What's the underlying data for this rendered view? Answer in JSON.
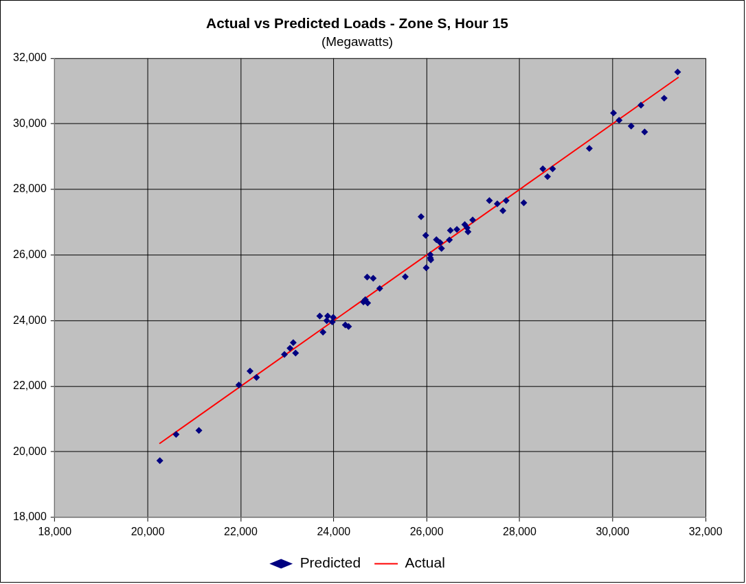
{
  "chart_data": {
    "type": "scatter",
    "title": "Actual vs Predicted Loads - Zone S, Hour 15",
    "subtitle": "(Megawatts)",
    "xlim": [
      18000,
      32000
    ],
    "xticks": [
      {
        "value": 18000,
        "label": "18,000"
      },
      {
        "value": 20000,
        "label": "20,000"
      },
      {
        "value": 22000,
        "label": "22,000"
      },
      {
        "value": 24000,
        "label": "24,000"
      },
      {
        "value": 26000,
        "label": "26,000"
      },
      {
        "value": 28000,
        "label": "28,000"
      },
      {
        "value": 30000,
        "label": "30,000"
      },
      {
        "value": 32000,
        "label": "32,000"
      }
    ],
    "ylim": [
      18000,
      32000
    ],
    "yticks": [
      {
        "value": 18000,
        "label": "18,000"
      },
      {
        "value": 20000,
        "label": "20,000"
      },
      {
        "value": 22000,
        "label": "22,000"
      },
      {
        "value": 24000,
        "label": "24,000"
      },
      {
        "value": 26000,
        "label": "26,000"
      },
      {
        "value": 28000,
        "label": "28,000"
      },
      {
        "value": 30000,
        "label": "30,000"
      },
      {
        "value": 32000,
        "label": "32,000"
      }
    ],
    "grid": true,
    "legend": "bottom",
    "series": [
      {
        "name": "Predicted",
        "marker": "diamond",
        "color": "#000080",
        "x": [
          20260,
          20610,
          21100,
          21960,
          22200,
          22340,
          22940,
          23060,
          23130,
          23180,
          23700,
          23770,
          23870,
          23850,
          23990,
          23970,
          24250,
          24320,
          24640,
          24730,
          24680,
          24990,
          24720,
          24850,
          25540,
          25880,
          25980,
          25990,
          26080,
          26090,
          26080,
          26210,
          26320,
          26290,
          26490,
          26510,
          26650,
          26820,
          26870,
          26890,
          26990,
          27350,
          27520,
          27640,
          27710,
          28090,
          28500,
          28600,
          28710,
          29500,
          30020,
          30140,
          30400,
          30690,
          30610,
          31110,
          31400
        ],
        "values": [
          19730,
          20530,
          20650,
          22040,
          22460,
          22270,
          22970,
          23160,
          23330,
          23010,
          24140,
          23650,
          24140,
          24000,
          24100,
          23960,
          23870,
          23820,
          24570,
          24540,
          24640,
          24980,
          25330,
          25290,
          25340,
          27170,
          26600,
          25610,
          26010,
          25850,
          25910,
          26470,
          26200,
          26380,
          26460,
          26750,
          26780,
          26930,
          26830,
          26710,
          27070,
          27660,
          27560,
          27350,
          27660,
          27590,
          28630,
          28390,
          28630,
          29250,
          30330,
          30110,
          29930,
          29750,
          30570,
          30780,
          31580
        ]
      },
      {
        "name": "Actual",
        "type": "line",
        "marker": "none",
        "line_style": "solid",
        "color": "#ff0000",
        "x": [
          20250,
          31420
        ],
        "values": [
          20250,
          31420
        ]
      }
    ]
  }
}
